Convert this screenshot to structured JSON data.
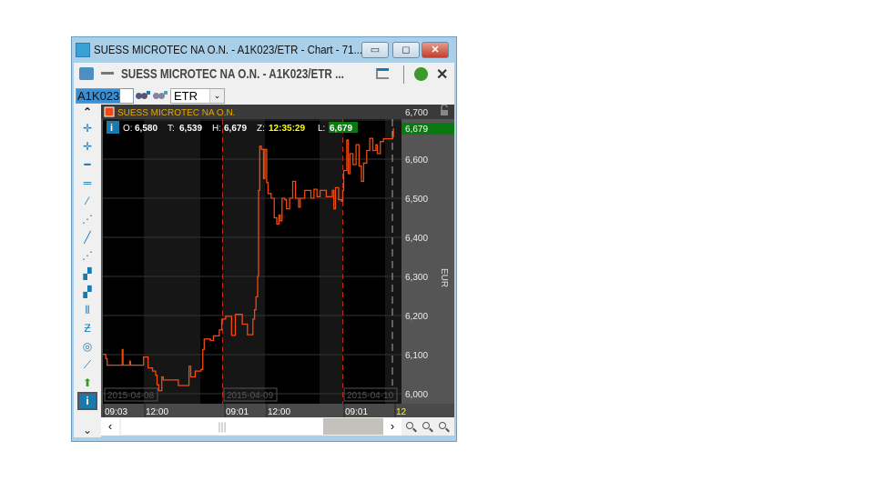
{
  "window": {
    "title": "SUESS MICROTEC NA O.N. - A1K023/ETR - Chart - 71...",
    "minimize": "▭",
    "maximize": "◻",
    "close": "✕"
  },
  "toolbar": {
    "title": "SUESS MICROTEC NA O.N. - A1K023/ETR ...",
    "status_color": "#3c9a2c",
    "close": "✕"
  },
  "search": {
    "symbol": "A1K023",
    "exchange": "ETR"
  },
  "chart": {
    "instrument": "SUESS MICROTEC NA O.N.",
    "info": {
      "o_label": "O:",
      "o": "6,580",
      "t_label": "T:",
      "t": "6,539",
      "h_label": "H:",
      "h": "6,679",
      "z_label": "Z:",
      "z": "12:35:29",
      "l_label": "L:",
      "l": "6,679"
    },
    "currency": "EUR",
    "last_price_label": "6,679",
    "line_color": "#f04a10"
  },
  "chart_data": {
    "type": "line",
    "ylim": [
      6.0,
      6.7
    ],
    "yticks": [
      "6,000",
      "6,100",
      "6,200",
      "6,300",
      "6,400",
      "6,500",
      "6,600",
      "6,700"
    ],
    "xticks": [
      "09:03",
      "12:00",
      "09:01",
      "12:00",
      "09:01",
      "12"
    ],
    "dates": [
      "2015-04-08",
      "2015-04-09",
      "2015-04-10"
    ],
    "series": [
      {
        "points": [
          [
            "2015-04-08",
            "09:03",
            6.101
          ],
          [
            "2015-04-08",
            "09:15",
            6.09
          ],
          [
            "2015-04-08",
            "09:21",
            6.073
          ],
          [
            "2015-04-08",
            "10:19",
            6.073
          ],
          [
            "2015-04-08",
            "10:25",
            6.113
          ],
          [
            "2015-04-08",
            "10:28",
            6.073
          ],
          [
            "2015-04-08",
            "10:57",
            6.083
          ],
          [
            "2015-04-08",
            "11:00",
            6.073
          ],
          [
            "2015-04-08",
            "11:48",
            6.073
          ],
          [
            "2015-04-08",
            "11:55",
            6.094
          ],
          [
            "2015-04-08",
            "12:08",
            6.094
          ],
          [
            "2015-04-08",
            "12:14",
            6.066
          ],
          [
            "2015-04-08",
            "12:33",
            6.058
          ],
          [
            "2015-04-08",
            "12:46",
            6.047
          ],
          [
            "2015-04-08",
            "12:52",
            6.023
          ],
          [
            "2015-04-08",
            "12:59",
            6.008
          ],
          [
            "2015-04-08",
            "13:12",
            6.043
          ],
          [
            "2015-04-08",
            "13:18",
            6.035
          ],
          [
            "2015-04-08",
            "14:16",
            6.035
          ],
          [
            "2015-04-08",
            "14:22",
            6.021
          ],
          [
            "2015-04-08",
            "14:54",
            6.021
          ],
          [
            "2015-04-08",
            "15:07",
            6.07
          ],
          [
            "2015-04-08",
            "15:14",
            6.043
          ],
          [
            "2015-04-08",
            "15:33",
            6.058
          ],
          [
            "2015-04-08",
            "15:58",
            6.062
          ],
          [
            "2015-04-08",
            "16:05",
            6.113
          ],
          [
            "2015-04-08",
            "16:11",
            6.14
          ],
          [
            "2015-04-08",
            "16:37",
            6.136
          ],
          [
            "2015-04-08",
            "16:50",
            6.148
          ],
          [
            "2015-04-08",
            "17:15",
            6.163
          ],
          [
            "2015-04-08",
            "17:25",
            6.19
          ],
          [
            "2015-04-09",
            "09:01",
            6.191
          ],
          [
            "2015-04-09",
            "09:14",
            6.198
          ],
          [
            "2015-04-09",
            "09:33",
            6.198
          ],
          [
            "2015-04-09",
            "09:39",
            6.149
          ],
          [
            "2015-04-09",
            "09:52",
            6.149
          ],
          [
            "2015-04-09",
            "09:55",
            6.203
          ],
          [
            "2015-04-09",
            "10:18",
            6.203
          ],
          [
            "2015-04-09",
            "10:24",
            6.178
          ],
          [
            "2015-04-09",
            "10:44",
            6.178
          ],
          [
            "2015-04-09",
            "10:46",
            6.151
          ],
          [
            "2015-04-09",
            "11:03",
            6.151
          ],
          [
            "2015-04-09",
            "11:09",
            6.191
          ],
          [
            "2015-04-09",
            "11:16",
            6.215
          ],
          [
            "2015-04-09",
            "11:22",
            6.248
          ],
          [
            "2015-04-09",
            "11:29",
            6.3
          ],
          [
            "2015-04-09",
            "11:33",
            6.52
          ],
          [
            "2015-04-09",
            "11:38",
            6.633
          ],
          [
            "2015-04-09",
            "11:45",
            6.625
          ],
          [
            "2015-04-09",
            "11:54",
            6.55
          ],
          [
            "2015-04-09",
            "12:00",
            6.625
          ],
          [
            "2015-04-09",
            "12:07",
            6.54
          ],
          [
            "2015-04-09",
            "12:13",
            6.512
          ],
          [
            "2015-04-09",
            "12:26",
            6.5
          ],
          [
            "2015-04-09",
            "12:39",
            6.45
          ],
          [
            "2015-04-09",
            "12:50",
            6.434
          ],
          [
            "2015-04-09",
            "12:59",
            6.457
          ],
          [
            "2015-04-09",
            "13:05",
            6.442
          ],
          [
            "2015-04-09",
            "13:12",
            6.5
          ],
          [
            "2015-04-09",
            "13:24",
            6.496
          ],
          [
            "2015-04-09",
            "13:31",
            6.473
          ],
          [
            "2015-04-09",
            "13:44",
            6.5
          ],
          [
            "2015-04-09",
            "13:57",
            6.543
          ],
          [
            "2015-04-09",
            "14:09",
            6.5
          ],
          [
            "2015-04-09",
            "14:22",
            6.477
          ],
          [
            "2015-04-09",
            "14:29",
            6.5
          ],
          [
            "2015-04-09",
            "14:48",
            6.52
          ],
          [
            "2015-04-09",
            "15:14",
            6.5
          ],
          [
            "2015-04-09",
            "15:27",
            6.523
          ],
          [
            "2015-04-09",
            "15:40",
            6.504
          ],
          [
            "2015-04-09",
            "15:53",
            6.52
          ],
          [
            "2015-04-09",
            "16:19",
            6.504
          ],
          [
            "2015-04-09",
            "16:45",
            6.52
          ],
          [
            "2015-04-09",
            "16:51",
            6.473
          ],
          [
            "2015-04-09",
            "16:58",
            6.527
          ],
          [
            "2015-04-09",
            "17:11",
            6.496
          ],
          [
            "2015-04-09",
            "17:24",
            6.492
          ],
          [
            "2015-04-10",
            "09:01",
            6.52
          ],
          [
            "2015-04-10",
            "09:05",
            6.571
          ],
          [
            "2015-04-10",
            "09:18",
            6.649
          ],
          [
            "2015-04-10",
            "09:24",
            6.563
          ],
          [
            "2015-04-10",
            "09:31",
            6.614
          ],
          [
            "2015-04-10",
            "09:44",
            6.586
          ],
          [
            "2015-04-10",
            "09:57",
            6.637
          ],
          [
            "2015-04-10",
            "10:10",
            6.582
          ],
          [
            "2015-04-10",
            "10:20",
            6.543
          ],
          [
            "2015-04-10",
            "10:29",
            6.59
          ],
          [
            "2015-04-10",
            "10:42",
            6.622
          ],
          [
            "2015-04-10",
            "10:55",
            6.653
          ],
          [
            "2015-04-10",
            "11:08",
            6.622
          ],
          [
            "2015-04-10",
            "11:21",
            6.637
          ],
          [
            "2015-04-10",
            "11:27",
            6.614
          ],
          [
            "2015-04-10",
            "11:40",
            6.645
          ],
          [
            "2015-04-10",
            "11:53",
            6.652
          ],
          [
            "2015-04-10",
            "12:32",
            6.657
          ],
          [
            "2015-04-10",
            "12:35",
            6.679
          ]
        ]
      }
    ],
    "grid": true
  },
  "tools": [
    "crosshair-icon",
    "crosshair-icon",
    "horizontal-line-icon",
    "parallel-lines-icon",
    "trend-line-icon",
    "channel-icon",
    "line-icon",
    "line-points-icon",
    "candles-icon",
    "candles-alt-icon",
    "fibonacci-time-icon",
    "fibonacci-fan-icon",
    "fibonacci-arc-icon",
    "fibonacci-retracement-icon",
    "upload-icon",
    "info-icon"
  ]
}
